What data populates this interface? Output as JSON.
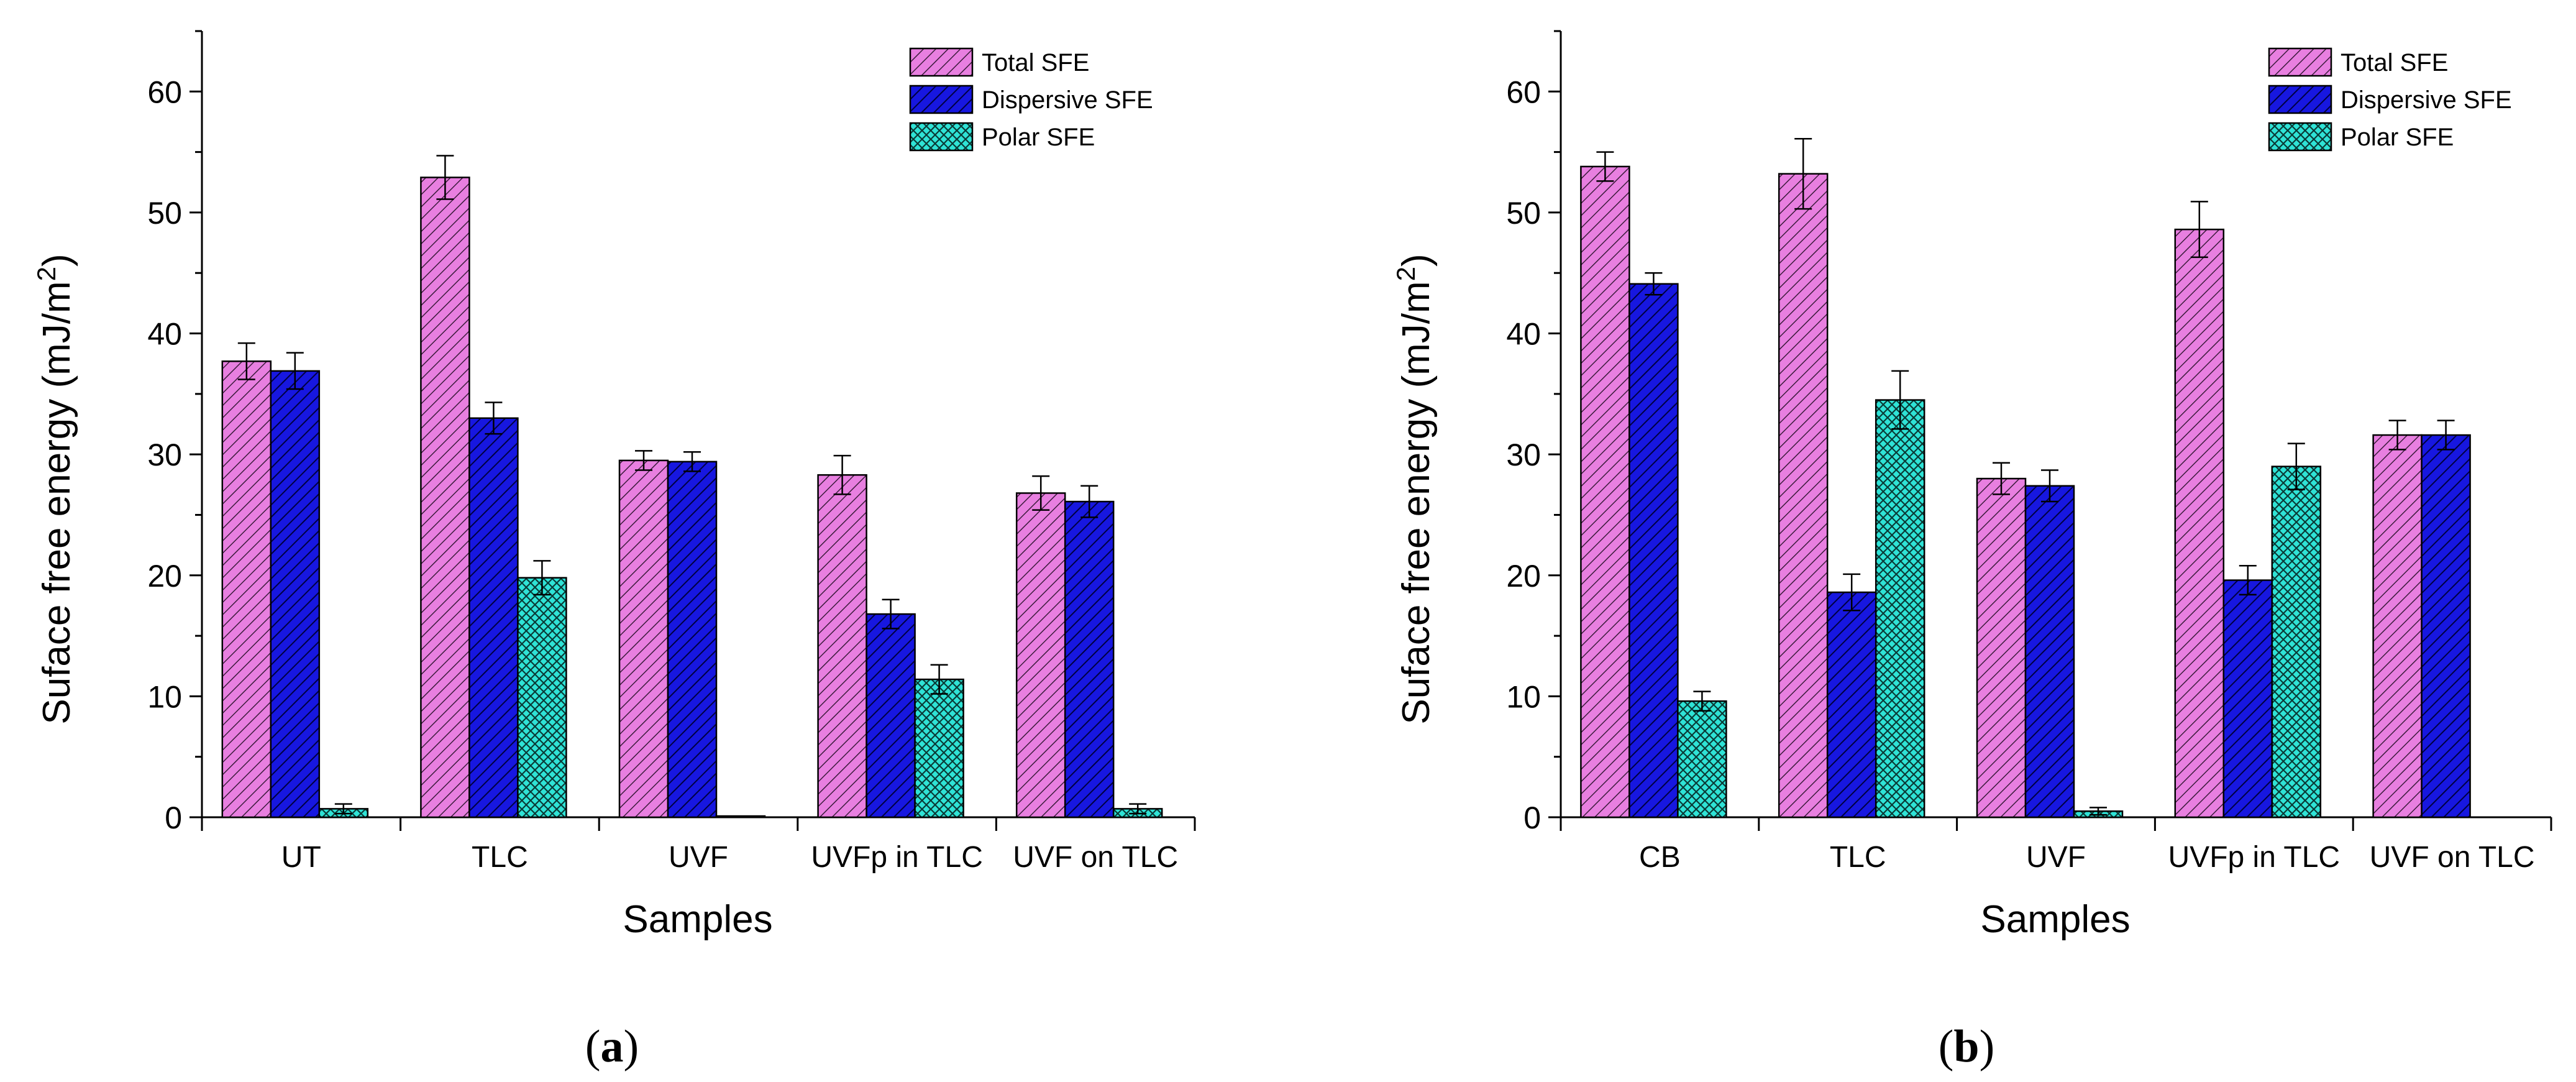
{
  "colors": {
    "total": "#e87fe0",
    "dispersive": "#1717e0",
    "polar": "#2fe3d6",
    "ink": "#000000"
  },
  "chart_data": [
    {
      "type": "bar",
      "panel": "a",
      "caption_label": "a",
      "xlabel": "Samples",
      "ylabel_prefix": "Suface free energy (mJ/m",
      "ylabel_sup": "2",
      "ylabel_suffix": ")",
      "ylim": [
        0,
        65
      ],
      "yticks": [
        0,
        10,
        20,
        30,
        40,
        50,
        60
      ],
      "legend_position": "top-right",
      "categories": [
        "UT",
        "TLC",
        "UVF",
        "UVFp in TLC",
        "UVF on TLC"
      ],
      "series": [
        {
          "name": "Total SFE",
          "key": "total",
          "values": [
            37.7,
            52.9,
            29.5,
            28.3,
            26.8
          ],
          "errors": [
            1.5,
            1.8,
            0.8,
            1.6,
            1.4
          ]
        },
        {
          "name": "Dispersive SFE",
          "key": "dispersive",
          "values": [
            36.9,
            33.0,
            29.4,
            16.8,
            26.1
          ],
          "errors": [
            1.5,
            1.3,
            0.8,
            1.2,
            1.3
          ]
        },
        {
          "name": "Polar SFE",
          "key": "polar",
          "values": [
            0.7,
            19.8,
            0.1,
            11.4,
            0.7
          ],
          "errors": [
            0.4,
            1.4,
            0.0,
            1.2,
            0.4
          ]
        }
      ]
    },
    {
      "type": "bar",
      "panel": "b",
      "caption_label": "b",
      "xlabel": "Samples",
      "ylabel_prefix": "Suface free energy (mJ/m",
      "ylabel_sup": "2",
      "ylabel_suffix": ")",
      "ylim": [
        0,
        65
      ],
      "yticks": [
        0,
        10,
        20,
        30,
        40,
        50,
        60
      ],
      "legend_position": "top-right",
      "categories": [
        "CB",
        "TLC",
        "UVF",
        "UVFp in TLC",
        "UVF on TLC"
      ],
      "series": [
        {
          "name": "Total SFE",
          "key": "total",
          "values": [
            53.8,
            53.2,
            28.0,
            48.6,
            31.6
          ],
          "errors": [
            1.2,
            2.9,
            1.3,
            2.3,
            1.2
          ]
        },
        {
          "name": "Dispersive SFE",
          "key": "dispersive",
          "values": [
            44.1,
            18.6,
            27.4,
            19.6,
            31.6
          ],
          "errors": [
            0.9,
            1.5,
            1.3,
            1.2,
            1.2
          ]
        },
        {
          "name": "Polar SFE",
          "key": "polar",
          "values": [
            9.6,
            34.5,
            0.5,
            29.0,
            null
          ],
          "errors": [
            0.8,
            2.4,
            0.3,
            1.9,
            null
          ]
        }
      ]
    }
  ]
}
